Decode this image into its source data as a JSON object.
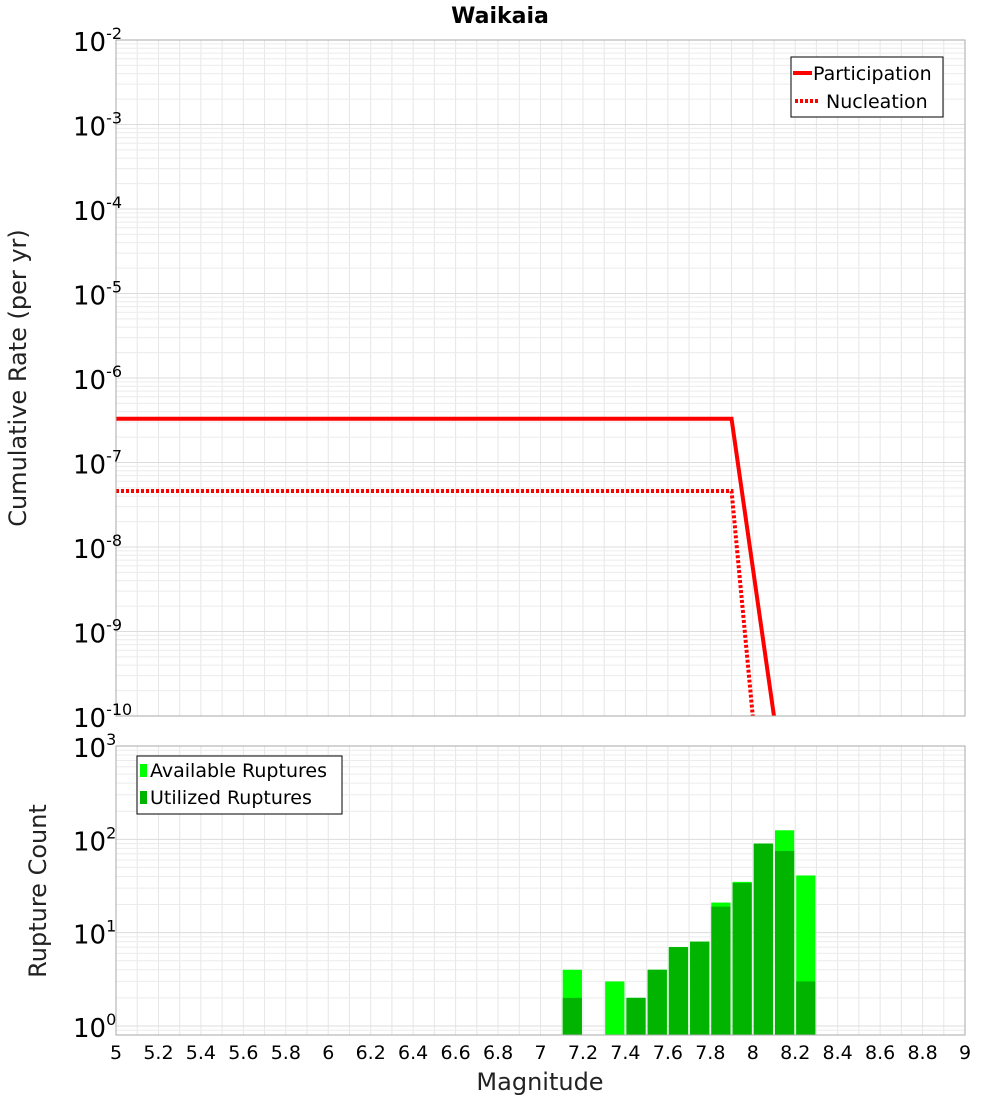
{
  "chart_data": [
    {
      "type": "line",
      "title": "Waikaia",
      "xlabel": "Magnitude",
      "ylabel": "Cumulative Rate (per yr)",
      "yscale": "log",
      "xlim": [
        5,
        9
      ],
      "ylim": [
        1e-10,
        0.01
      ],
      "ytick_bases": [
        "10",
        "10",
        "10",
        "10",
        "10",
        "10",
        "10",
        "10",
        "10"
      ],
      "ytick_exponents": [
        "-10",
        "-9",
        "-8",
        "-7",
        "-6",
        "-5",
        "-4",
        "-3",
        "-2"
      ],
      "grid": true,
      "legend": "top-right",
      "series": [
        {
          "name": "Participation",
          "style": "solid",
          "color": "#ff0000",
          "x": [
            5.0,
            7.9,
            8.1
          ],
          "y": [
            3.3e-07,
            3.3e-07,
            1e-10
          ]
        },
        {
          "name": "Nucleation",
          "style": "dotted",
          "color": "#ff0000",
          "x": [
            5.0,
            7.9,
            8.0
          ],
          "y": [
            4.6e-08,
            4.6e-08,
            1e-10
          ]
        }
      ]
    },
    {
      "type": "bar",
      "xlabel": "Magnitude",
      "ylabel": "Rupture Count",
      "yscale": "log",
      "xlim": [
        5,
        9
      ],
      "ylim": [
        0.8,
        1000
      ],
      "xticks": [
        "5",
        "5.2",
        "5.4",
        "5.6",
        "5.8",
        "6",
        "6.2",
        "6.4",
        "6.6",
        "6.8",
        "7",
        "7.2",
        "7.4",
        "7.6",
        "7.8",
        "8",
        "8.2",
        "8.4",
        "8.6",
        "8.8",
        "9"
      ],
      "ytick_bases": [
        "10",
        "10",
        "10",
        "10"
      ],
      "ytick_exponents": [
        "0",
        "1",
        "2",
        "3"
      ],
      "grid": true,
      "legend": "top-left",
      "bin_width": 0.1,
      "series": [
        {
          "name": "Available Ruptures",
          "color": "#00ff00",
          "x": [
            7.15,
            7.35,
            7.45,
            7.55,
            7.65,
            7.75,
            7.85,
            7.95,
            8.05,
            8.15,
            8.25
          ],
          "values": [
            4,
            3,
            2,
            4,
            7,
            8,
            21,
            35,
            90,
            125,
            41
          ]
        },
        {
          "name": "Utilized Ruptures",
          "color": "#00b400",
          "x": [
            7.15,
            7.35,
            7.45,
            7.55,
            7.65,
            7.75,
            7.85,
            7.95,
            8.05,
            8.15,
            8.25
          ],
          "values": [
            2,
            0,
            2,
            4,
            7,
            8,
            19,
            34,
            90,
            75,
            3
          ]
        }
      ]
    }
  ]
}
